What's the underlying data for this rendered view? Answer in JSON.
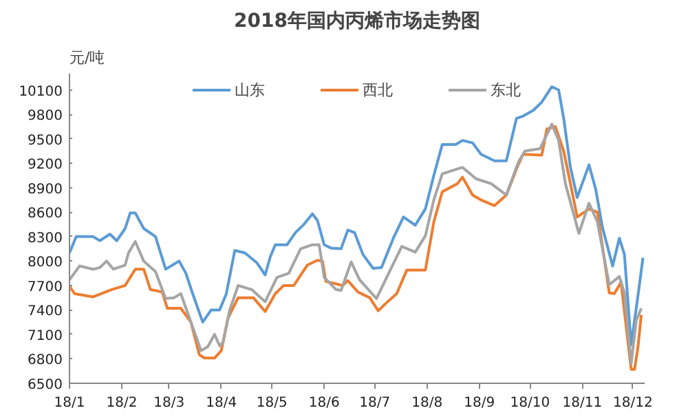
{
  "chart_data": {
    "type": "line",
    "title": "2018年国内丙烯市场走势图",
    "ylabel": "元/吨",
    "xlim": [
      "2018-01-01",
      "2018-12-08"
    ],
    "xticks": [
      {
        "value": "2018-01-01",
        "label": "18/1"
      },
      {
        "value": "2018-02-01",
        "label": "18/2"
      },
      {
        "value": "2018-03-01",
        "label": "18/3"
      },
      {
        "value": "2018-04-01",
        "label": "18/4"
      },
      {
        "value": "2018-05-01",
        "label": "18/5"
      },
      {
        "value": "2018-06-01",
        "label": "18/6"
      },
      {
        "value": "2018-07-01",
        "label": "18/7"
      },
      {
        "value": "2018-08-01",
        "label": "18/8"
      },
      {
        "value": "2018-09-01",
        "label": "18/9"
      },
      {
        "value": "2018-10-01",
        "label": "18/10"
      },
      {
        "value": "2018-11-01",
        "label": "18/11"
      },
      {
        "value": "2018-12-01",
        "label": "18/12"
      }
    ],
    "ylim": [
      6500,
      10300
    ],
    "yticks": [
      6500,
      6800,
      7100,
      7400,
      7700,
      8000,
      8300,
      8600,
      8900,
      9200,
      9500,
      9800,
      10100
    ],
    "grid": false,
    "legend": "top",
    "marker": "none",
    "line_style": "solid",
    "series": [
      {
        "name": "山东",
        "color": "#5b9bd5",
        "x": [
          "2018-01-01",
          "2018-01-05",
          "2018-01-15",
          "2018-01-19",
          "2018-01-25",
          "2018-01-29",
          "2018-02-03",
          "2018-02-06",
          "2018-02-09",
          "2018-02-14",
          "2018-02-21",
          "2018-02-27",
          "2018-03-07",
          "2018-03-11",
          "2018-03-15",
          "2018-03-21",
          "2018-03-26",
          "2018-03-31",
          "2018-04-04",
          "2018-04-09",
          "2018-04-15",
          "2018-04-22",
          "2018-04-27",
          "2018-04-30",
          "2018-05-03",
          "2018-05-10",
          "2018-05-15",
          "2018-05-20",
          "2018-05-25",
          "2018-05-28",
          "2018-06-01",
          "2018-06-05",
          "2018-06-11",
          "2018-06-15",
          "2018-06-19",
          "2018-06-24",
          "2018-06-30",
          "2018-07-05",
          "2018-07-12",
          "2018-07-18",
          "2018-07-25",
          "2018-07-31",
          "2018-08-05",
          "2018-08-10",
          "2018-08-18",
          "2018-08-22",
          "2018-08-28",
          "2018-09-02",
          "2018-09-10",
          "2018-09-17",
          "2018-09-23",
          "2018-09-27",
          "2018-10-03",
          "2018-10-08",
          "2018-10-14",
          "2018-10-18",
          "2018-10-21",
          "2018-10-25",
          "2018-10-29",
          "2018-11-05",
          "2018-11-09",
          "2018-11-13",
          "2018-11-19",
          "2018-11-23",
          "2018-11-26",
          "2018-11-30",
          "2018-12-04",
          "2018-12-07"
        ],
        "values": [
          8100,
          8300,
          8300,
          8250,
          8330,
          8250,
          8400,
          8590,
          8590,
          8400,
          8300,
          7900,
          8000,
          7850,
          7600,
          7250,
          7400,
          7400,
          7600,
          8130,
          8100,
          7980,
          7830,
          8050,
          8200,
          8200,
          8350,
          8450,
          8580,
          8500,
          8200,
          8160,
          8150,
          8380,
          8350,
          8080,
          7910,
          7920,
          8280,
          8540,
          8440,
          8640,
          9050,
          9430,
          9430,
          9480,
          9450,
          9310,
          9230,
          9230,
          9750,
          9780,
          9850,
          9950,
          10140,
          10100,
          9750,
          9150,
          8780,
          9180,
          8880,
          8410,
          7940,
          8280,
          8080,
          6970,
          7570,
          8040
        ]
      },
      {
        "name": "西北",
        "color": "#ed7d31",
        "x": [
          "2018-01-01",
          "2018-01-04",
          "2018-01-15",
          "2018-01-26",
          "2018-02-03",
          "2018-02-09",
          "2018-02-14",
          "2018-02-18",
          "2018-02-25",
          "2018-02-28",
          "2018-03-08",
          "2018-03-14",
          "2018-03-19",
          "2018-03-22",
          "2018-03-28",
          "2018-04-01",
          "2018-04-05",
          "2018-04-11",
          "2018-04-20",
          "2018-04-27",
          "2018-05-03",
          "2018-05-08",
          "2018-05-14",
          "2018-05-22",
          "2018-05-28",
          "2018-05-31",
          "2018-06-02",
          "2018-06-08",
          "2018-06-12",
          "2018-06-15",
          "2018-06-21",
          "2018-06-28",
          "2018-07-03",
          "2018-07-07",
          "2018-07-14",
          "2018-07-20",
          "2018-07-31",
          "2018-08-05",
          "2018-08-10",
          "2018-08-19",
          "2018-08-22",
          "2018-08-28",
          "2018-09-02",
          "2018-09-10",
          "2018-09-17",
          "2018-09-24",
          "2018-09-27",
          "2018-10-08",
          "2018-10-11",
          "2018-10-16",
          "2018-10-21",
          "2018-10-25",
          "2018-10-29",
          "2018-11-05",
          "2018-11-10",
          "2018-11-17",
          "2018-11-20",
          "2018-11-24",
          "2018-11-30",
          "2018-12-02",
          "2018-12-04",
          "2018-12-06"
        ],
        "values": [
          7690,
          7600,
          7560,
          7650,
          7700,
          7900,
          7900,
          7650,
          7620,
          7420,
          7420,
          7250,
          6850,
          6810,
          6810,
          6900,
          7300,
          7550,
          7550,
          7380,
          7600,
          7700,
          7700,
          7950,
          8010,
          8000,
          7750,
          7720,
          7700,
          7760,
          7620,
          7550,
          7390,
          7470,
          7600,
          7890,
          7890,
          8480,
          8850,
          8950,
          9030,
          8810,
          8750,
          8680,
          8810,
          9180,
          9310,
          9300,
          9620,
          9650,
          9350,
          8950,
          8540,
          8640,
          8600,
          7610,
          7600,
          7740,
          6670,
          6670,
          6940,
          7340
        ]
      },
      {
        "name": "东北",
        "color": "#a5a5a5",
        "x": [
          "2018-01-01",
          "2018-01-07",
          "2018-01-15",
          "2018-01-19",
          "2018-01-23",
          "2018-01-27",
          "2018-02-03",
          "2018-02-05",
          "2018-02-09",
          "2018-02-14",
          "2018-02-21",
          "2018-02-27",
          "2018-03-04",
          "2018-03-08",
          "2018-03-14",
          "2018-03-20",
          "2018-03-24",
          "2018-03-28",
          "2018-03-31",
          "2018-04-02",
          "2018-04-06",
          "2018-04-11",
          "2018-04-19",
          "2018-04-27",
          "2018-05-04",
          "2018-05-11",
          "2018-05-18",
          "2018-05-25",
          "2018-05-29",
          "2018-06-01",
          "2018-06-08",
          "2018-06-11",
          "2018-06-17",
          "2018-06-22",
          "2018-07-02",
          "2018-07-09",
          "2018-07-17",
          "2018-07-25",
          "2018-07-31",
          "2018-08-05",
          "2018-08-10",
          "2018-08-22",
          "2018-08-30",
          "2018-09-08",
          "2018-09-17",
          "2018-09-24",
          "2018-09-28",
          "2018-10-07",
          "2018-10-14",
          "2018-10-18",
          "2018-10-22",
          "2018-10-30",
          "2018-11-05",
          "2018-11-10",
          "2018-11-17",
          "2018-11-23",
          "2018-11-26",
          "2018-11-30",
          "2018-12-03",
          "2018-12-06"
        ],
        "values": [
          7770,
          7940,
          7900,
          7920,
          8000,
          7900,
          7950,
          8100,
          8240,
          8000,
          7870,
          7540,
          7550,
          7600,
          7250,
          6900,
          6950,
          7100,
          6960,
          7000,
          7400,
          7700,
          7650,
          7500,
          7800,
          7850,
          8150,
          8200,
          8200,
          7800,
          7650,
          7640,
          7990,
          7770,
          7540,
          7840,
          8180,
          8110,
          8310,
          8750,
          9070,
          9150,
          9010,
          8950,
          8810,
          9210,
          9350,
          9380,
          9680,
          9480,
          8950,
          8340,
          8710,
          8480,
          7710,
          7810,
          7610,
          6740,
          7270,
          7420
        ]
      }
    ]
  }
}
